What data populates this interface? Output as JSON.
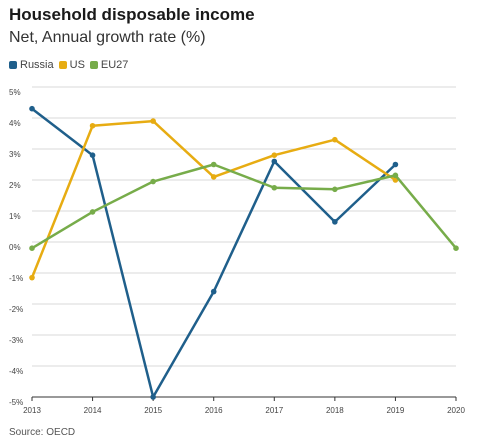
{
  "title": "Household disposable income",
  "subtitle": "Net, Annual growth rate (%)",
  "source": "Source: OECD",
  "colors": {
    "Russia": "#1f5f8b",
    "US": "#e7ac12",
    "EU27": "#77ac4a",
    "grid": "#d9d9d9",
    "axis": "#333333"
  },
  "chart_data": {
    "type": "line",
    "title": "Household disposable income",
    "subtitle": "Net, Annual growth rate (%)",
    "xlabel": "",
    "ylabel": "",
    "x": [
      "2013",
      "2014",
      "2015",
      "2016",
      "2017",
      "2018",
      "2019",
      "2020"
    ],
    "ylim": [
      -5,
      5
    ],
    "yticks": [
      "-5%",
      "-4%",
      "-3%",
      "-2%",
      "-1%",
      "0%",
      "1%",
      "2%",
      "3%",
      "4%",
      "5%"
    ],
    "grid": true,
    "legend_position": "top-left",
    "series": [
      {
        "name": "Russia",
        "values": [
          4.3,
          2.8,
          -5.0,
          -1.6,
          2.6,
          0.65,
          2.5,
          null
        ]
      },
      {
        "name": "US",
        "values": [
          -1.15,
          3.75,
          3.9,
          2.1,
          2.8,
          3.3,
          2.0,
          null
        ]
      },
      {
        "name": "EU27",
        "values": [
          -0.2,
          0.97,
          1.95,
          2.5,
          1.75,
          1.7,
          2.15,
          -0.2
        ]
      }
    ]
  }
}
